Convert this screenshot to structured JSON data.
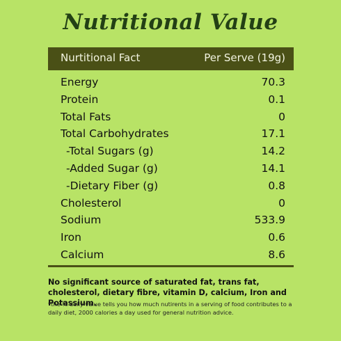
{
  "title": "Nutritional Value",
  "header": {
    "left": "Nurtitional Fact",
    "right": "Per Serve (19g)"
  },
  "rows": [
    {
      "label": "Energy",
      "value": "70.3"
    },
    {
      "label": "Protein",
      "value": "0.1"
    },
    {
      "label": "Total Fats",
      "value": "0"
    },
    {
      "label": "Total Carbohydrates",
      "value": "17.1"
    },
    {
      "label": "-Total Sugars (g)",
      "value": "14.2"
    },
    {
      "label": "-Added Sugar (g)",
      "value": "14.1"
    },
    {
      "label": "-Dietary Fiber (g)",
      "value": "0.8"
    },
    {
      "label": "Cholesterol",
      "value": "0"
    },
    {
      "label": "Sodium",
      "value": "533.9"
    },
    {
      "label": "Iron",
      "value": "0.6"
    },
    {
      "label": "Calcium",
      "value": "8.6"
    }
  ],
  "notes": {
    "bold": "No significant source of saturated fat, trans fat, cholesterol, dietary fibre, vitamin D, calcium, Iron and Potassium.",
    "small": "*the % daily value tells you how much nutirents in a serving of food contributes to a daily diet, 2000 calories a day used for general nutrition advice."
  },
  "colors": {
    "background": "#b8e366",
    "header_bar": "#4a5016",
    "title": "#234015"
  }
}
